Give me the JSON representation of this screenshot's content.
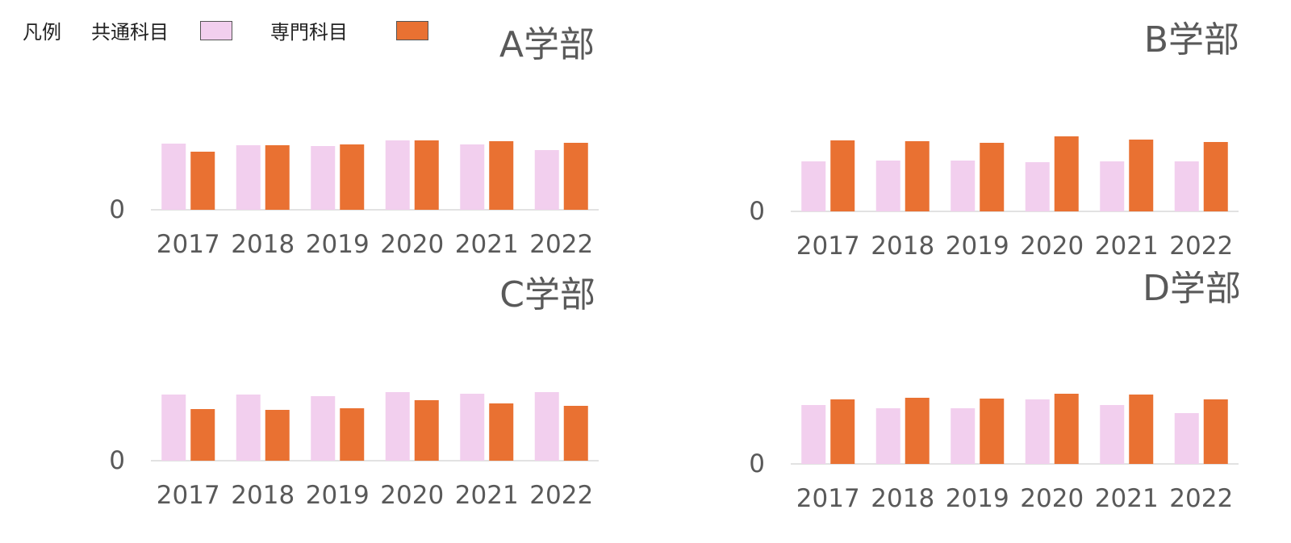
{
  "legend": {
    "title": "凡例",
    "items": [
      {
        "label": "共通科目",
        "color": "#f2cfee"
      },
      {
        "label": "専門科目",
        "color": "#e97132"
      }
    ]
  },
  "chart_data": [
    {
      "type": "bar",
      "title": "A学部",
      "categories": [
        "2017",
        "2018",
        "2019",
        "2020",
        "2021",
        "2022"
      ],
      "series": [
        {
          "name": "共通科目",
          "color": "#f2cfee",
          "values": [
            82,
            80,
            79,
            86,
            81,
            74
          ]
        },
        {
          "name": "専門科目",
          "color": "#e97132",
          "values": [
            72,
            80,
            81,
            86,
            85,
            83
          ]
        }
      ],
      "ylim": [
        0,
        110
      ],
      "yticks": [
        "0"
      ]
    },
    {
      "type": "bar",
      "title": "B学部",
      "categories": [
        "2017",
        "2018",
        "2019",
        "2020",
        "2021",
        "2022"
      ],
      "series": [
        {
          "name": "共通科目",
          "color": "#f2cfee",
          "values": [
            62,
            63,
            63,
            61,
            62,
            62
          ]
        },
        {
          "name": "専門科目",
          "color": "#e97132",
          "values": [
            88,
            87,
            85,
            93,
            89,
            86
          ]
        }
      ],
      "ylim": [
        0,
        110
      ],
      "yticks": [
        "0"
      ]
    },
    {
      "type": "bar",
      "title": "C学部",
      "categories": [
        "2017",
        "2018",
        "2019",
        "2020",
        "2021",
        "2022"
      ],
      "series": [
        {
          "name": "共通科目",
          "color": "#f2cfee",
          "values": [
            82,
            82,
            80,
            85,
            83,
            85
          ]
        },
        {
          "name": "専門科目",
          "color": "#e97132",
          "values": [
            64,
            63,
            65,
            75,
            71,
            68
          ]
        }
      ],
      "ylim": [
        0,
        110
      ],
      "yticks": [
        "0"
      ]
    },
    {
      "type": "bar",
      "title": "D学部",
      "categories": [
        "2017",
        "2018",
        "2019",
        "2020",
        "2021",
        "2022"
      ],
      "series": [
        {
          "name": "共通科目",
          "color": "#f2cfee",
          "values": [
            73,
            69,
            69,
            80,
            73,
            63
          ]
        },
        {
          "name": "専門科目",
          "color": "#e97132",
          "values": [
            80,
            82,
            81,
            87,
            86,
            80
          ]
        }
      ],
      "ylim": [
        0,
        110
      ],
      "yticks": [
        "0"
      ]
    }
  ]
}
